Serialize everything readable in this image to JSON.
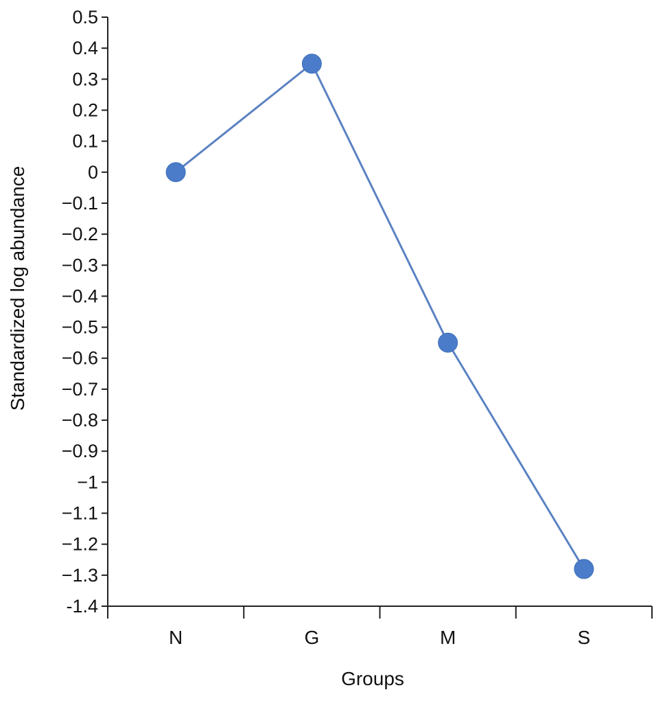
{
  "chart_data": {
    "type": "line",
    "categories": [
      "N",
      "G",
      "M",
      "S"
    ],
    "series": [
      {
        "values": [
          0,
          0.35,
          -0.55,
          -1.28
        ]
      }
    ],
    "xlabel": "Groups",
    "ylabel": "Standardized log abundance",
    "ylim": [
      -1.4,
      0.5
    ],
    "y_ticks": [
      "0.5",
      "0.4",
      "0.3",
      "0.2",
      "0.1",
      "0",
      "−0.1",
      "−0.2",
      "−0.3",
      "−0.4",
      "−0.5",
      "−0.6",
      "−0.7",
      "−0.8",
      "−0.9",
      "−1",
      "−1.1",
      "−1.2",
      "−1.3",
      "-1.4"
    ],
    "grid": false,
    "legend": "none",
    "colors": {
      "series": "#4a7cc9",
      "line": "#5b82c2",
      "axis": "#222222"
    }
  }
}
